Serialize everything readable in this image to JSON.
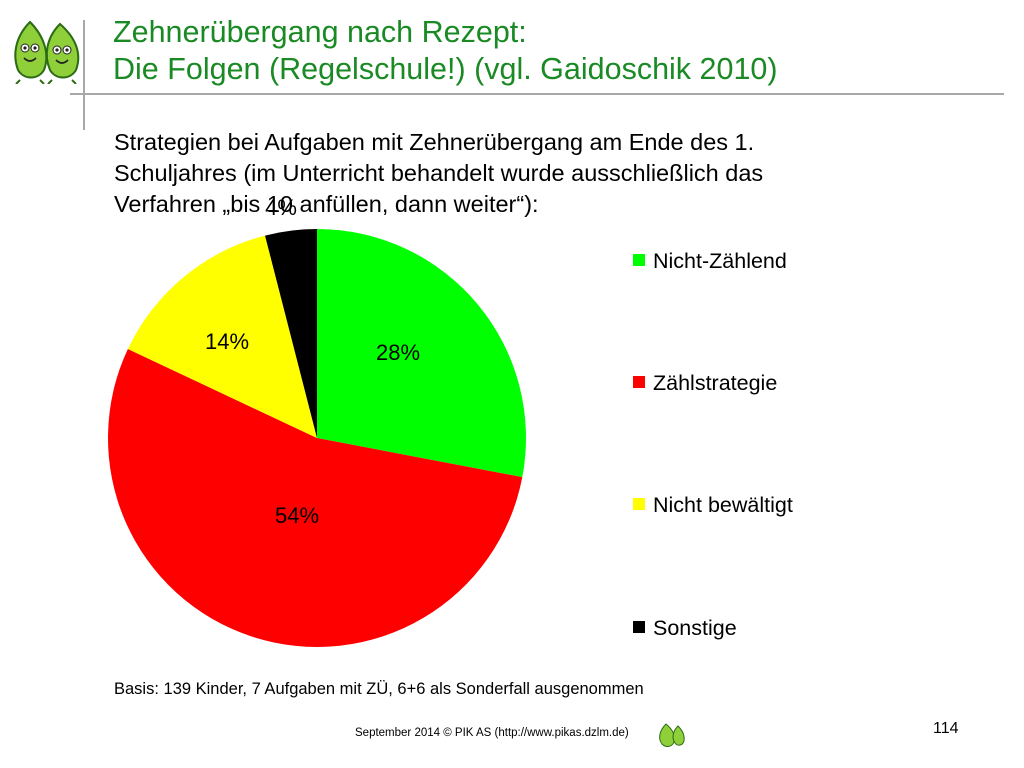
{
  "title": {
    "line1": "Zehnerübergang nach Rezept:",
    "line2": "Die Folgen (Regelschule!) (vgl. Gaidoschik 2010)"
  },
  "subtitle": {
    "line1": "Strategien bei Aufgaben mit Zehnerübergang am Ende des 1.",
    "line2": "Schuljahres (im Unterricht behandelt wurde ausschließlich das",
    "line3": "Verfahren „bis 10 anfüllen, dann weiter“):"
  },
  "chart_data": {
    "type": "pie",
    "start_angle_deg": 0,
    "direction": "clockwise",
    "legend_position": "right",
    "slices": [
      {
        "label": "Nicht-Zählend",
        "value": 28,
        "display": "28%",
        "color": "#00ff00"
      },
      {
        "label": "Zählstrategie",
        "value": 54,
        "display": "54%",
        "color": "#ff0000"
      },
      {
        "label": "Nicht bewältigt",
        "value": 14,
        "display": "14%",
        "color": "#ffff00"
      },
      {
        "label": "Sonstige",
        "value": 4,
        "display": "4%",
        "color": "#000000"
      }
    ]
  },
  "basis": "Basis: 139 Kinder, 7 Aufgaben mit ZÜ, 6+6 als Sonderfall ausgenommen",
  "footer": "September 2014 © PIK AS (http://www.pikas.dzlm.de)",
  "page_number": "114",
  "logo_icon": "leaf-mascots-icon"
}
